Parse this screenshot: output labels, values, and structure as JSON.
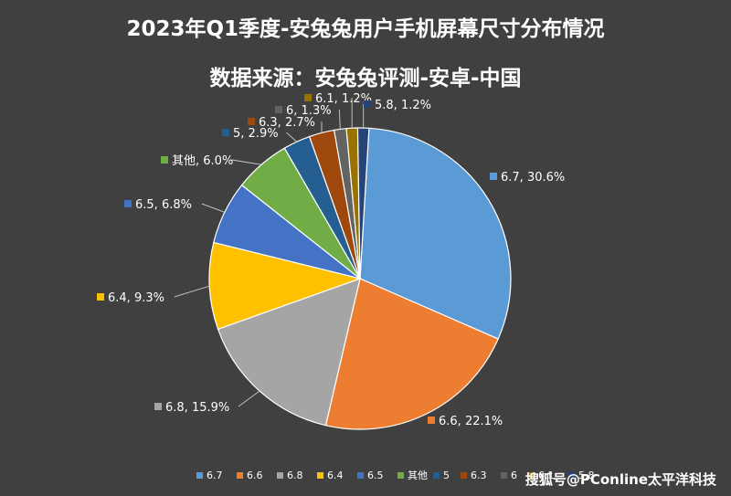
{
  "chart_data": {
    "type": "pie",
    "title": "2023年Q1季度-安兔兔用户手机屏幕尺寸分布情况",
    "subtitle": "数据来源：安兔兔评测-安卓-中国",
    "slices": [
      {
        "label": "6.7",
        "value": 30.6,
        "data_label": "6.7, 30.6%",
        "color": "#5b9bd5"
      },
      {
        "label": "6.6",
        "value": 22.1,
        "data_label": "6.6, 22.1%",
        "color": "#ed7d31"
      },
      {
        "label": "6.8",
        "value": 15.9,
        "data_label": "6.8, 15.9%",
        "color": "#a5a5a5"
      },
      {
        "label": "6.4",
        "value": 9.3,
        "data_label": "6.4, 9.3%",
        "color": "#ffc000"
      },
      {
        "label": "6.5",
        "value": 6.8,
        "data_label": "6.5, 6.8%",
        "color": "#4472c4"
      },
      {
        "label": "其他",
        "value": 6.0,
        "data_label": "其他, 6.0%",
        "color": "#70ad47"
      },
      {
        "label": "5",
        "value": 2.9,
        "data_label": "5, 2.9%",
        "color": "#255e91"
      },
      {
        "label": "6.3",
        "value": 2.7,
        "data_label": "6.3, 2.7%",
        "color": "#9e480e"
      },
      {
        "label": "6",
        "value": 1.3,
        "data_label": "6, 1.3%",
        "color": "#636363"
      },
      {
        "label": "6.1",
        "value": 1.2,
        "data_label": "6.1, 1.2%",
        "color": "#997300"
      },
      {
        "label": "5.8",
        "value": 1.2,
        "data_label": "5.8, 1.2%",
        "color": "#264478"
      }
    ],
    "legend_position": "bottom",
    "legend_entries": [
      "6.7",
      "6.6",
      "6.8",
      "6.4",
      "6.5",
      "其他",
      "5",
      "6.3",
      "6",
      "6.1",
      "5.8"
    ]
  },
  "watermark": "搜狐号@PConline太平洋科技"
}
